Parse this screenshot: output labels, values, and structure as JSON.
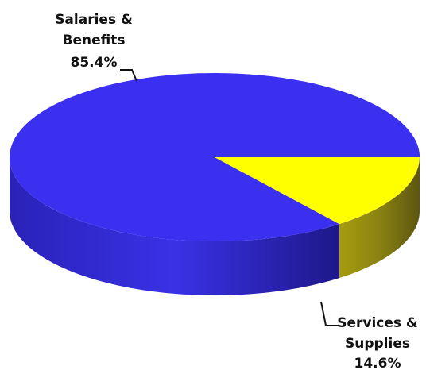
{
  "chart_data": {
    "type": "pie",
    "style": "3d",
    "slices": [
      {
        "label_lines": [
          "Salaries &",
          "Benefits"
        ],
        "value": 85.4,
        "value_text": "85.4%",
        "color": "#3b2ff0"
      },
      {
        "label_lines": [
          "Services &",
          "Supplies"
        ],
        "value": 14.6,
        "value_text": "14.6%",
        "color": "#ffff00"
      }
    ],
    "legend": "none"
  }
}
